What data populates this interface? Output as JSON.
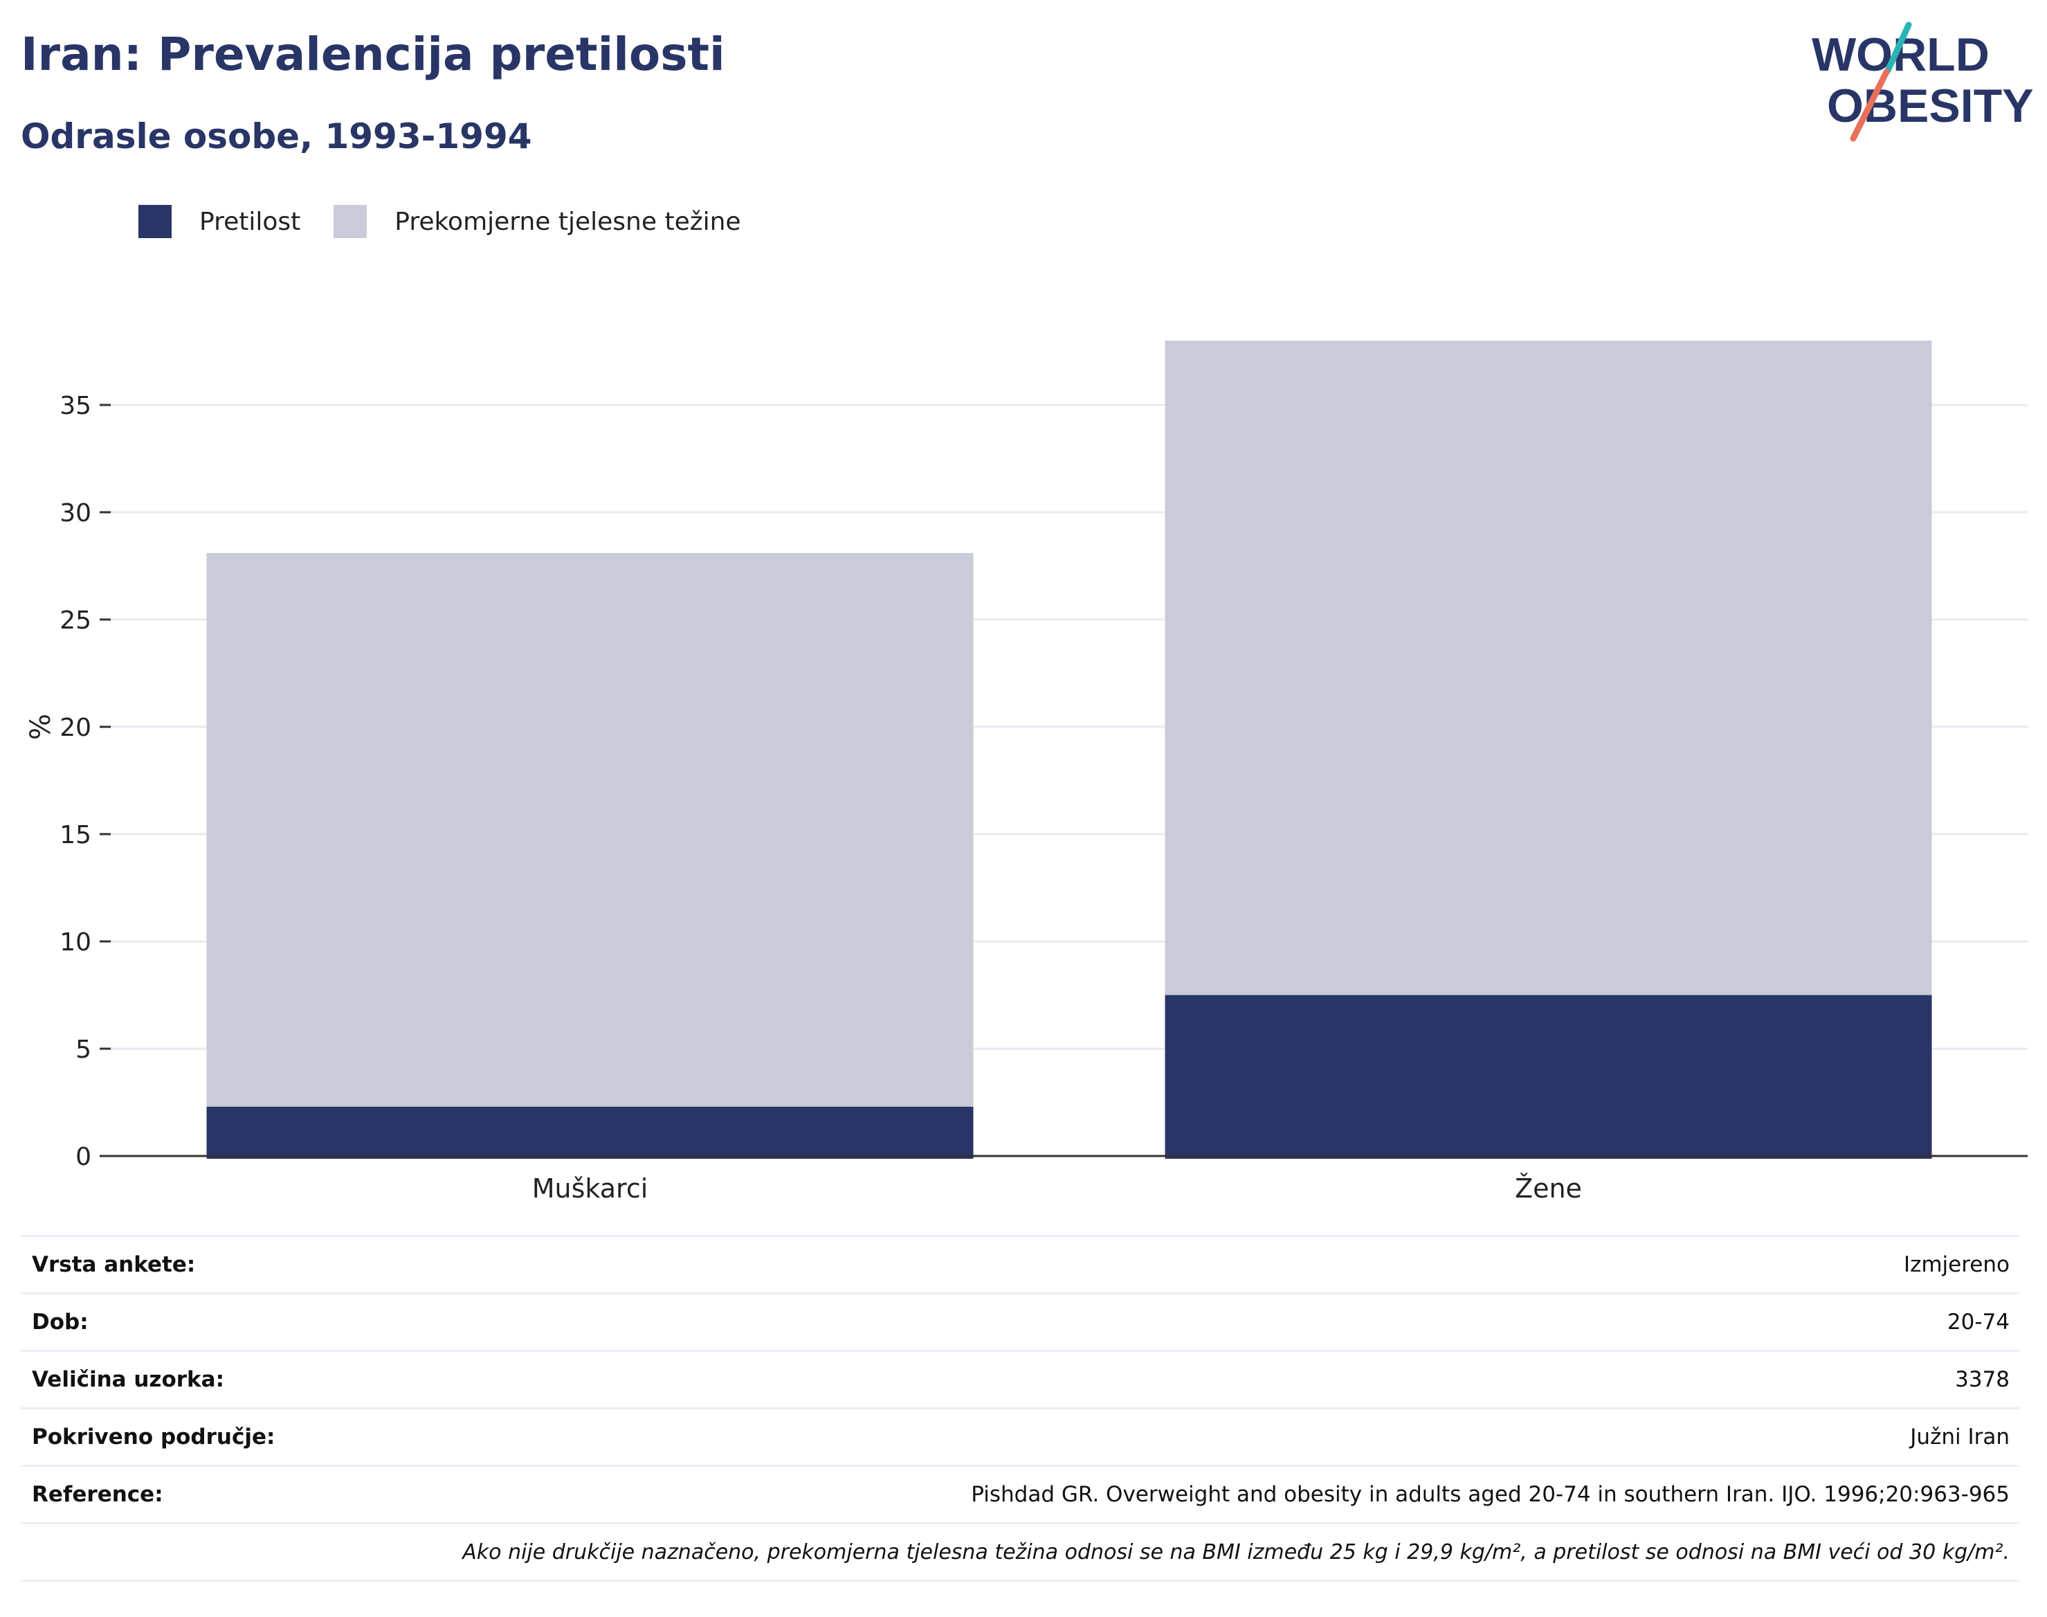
{
  "header": {
    "title": "Iran: Prevalencija pretilosti",
    "subtitle": "Odrasle osobe, 1993-1994"
  },
  "logo": {
    "line1": "WORLD",
    "line2": "OBESITY",
    "colors": {
      "text": "#283566",
      "teal": "#2ab5b5",
      "coral": "#e8705a"
    }
  },
  "colors": {
    "obesity": "#283566",
    "overweight": "#c9ccd8",
    "grid": "#e8eaf0",
    "axis": "#333333"
  },
  "chart_data": {
    "type": "bar",
    "stacked": true,
    "categories": [
      "Muškarci",
      "Žene"
    ],
    "series": [
      {
        "name": "Pretilost",
        "values": [
          2.3,
          7.5
        ],
        "color": "#283566"
      },
      {
        "name": "Prekomjerne tjelesne težine",
        "values": [
          25.8,
          30.5
        ],
        "color": "#c9ccd8"
      }
    ],
    "title": "Iran: Prevalencija pretilosti",
    "subtitle": "Odrasle osobe, 1993-1994",
    "xlabel": "",
    "ylabel": "%",
    "ylim": [
      0,
      40
    ],
    "yticks": [
      0,
      5,
      10,
      15,
      20,
      25,
      30,
      35
    ],
    "grid": true,
    "legend_position": "top-left"
  },
  "info": {
    "rows": [
      {
        "key": "Vrsta ankete:",
        "value": "Izmjereno"
      },
      {
        "key": "Dob:",
        "value": "20-74"
      },
      {
        "key": "Veličina uzorka:",
        "value": "3378"
      },
      {
        "key": "Pokriveno područje:",
        "value": "Južni Iran"
      },
      {
        "key": "Reference:",
        "value": "Pishdad GR. Overweight and obesity in adults aged 20-74 in southern Iran. IJO. 1996;20:963-965"
      }
    ],
    "note": "Ako nije drukčije naznačeno, prekomjerna tjelesna težina odnosi se na BMI između 25 kg i 29,9 kg/m², a pretilost se odnosi na BMI veći od 30 kg/m²."
  }
}
